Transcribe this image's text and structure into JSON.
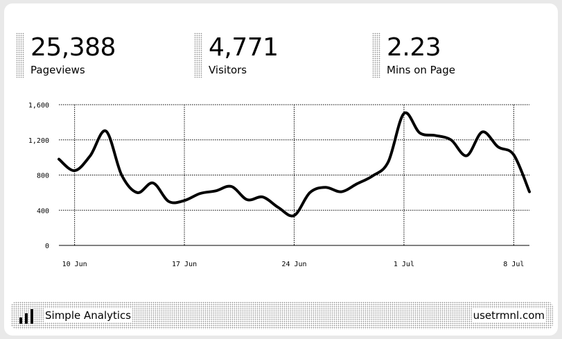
{
  "stats": [
    {
      "value": "25,388",
      "label": "Pageviews"
    },
    {
      "value": "4,771",
      "label": "Visitors"
    },
    {
      "value": "2.23",
      "label": "Mins on Page"
    }
  ],
  "footer": {
    "app_name": "Simple Analytics",
    "url": "usetrmnl.com"
  },
  "chart_data": {
    "type": "line",
    "title": "",
    "xlabel": "",
    "ylabel": "",
    "ylim": [
      0,
      1600
    ],
    "y_ticks": [
      "0",
      "400",
      "800",
      "1,200",
      "1,600"
    ],
    "x_ticks": [
      "10 Jun",
      "17 Jun",
      "24 Jun",
      "1 Jul",
      "8 Jul"
    ],
    "grid": true,
    "x": [
      "9 Jun",
      "10 Jun",
      "11 Jun",
      "12 Jun",
      "13 Jun",
      "14 Jun",
      "15 Jun",
      "16 Jun",
      "17 Jun",
      "18 Jun",
      "19 Jun",
      "20 Jun",
      "21 Jun",
      "22 Jun",
      "23 Jun",
      "24 Jun",
      "25 Jun",
      "26 Jun",
      "27 Jun",
      "28 Jun",
      "29 Jun",
      "30 Jun",
      "1 Jul",
      "2 Jul",
      "3 Jul",
      "4 Jul",
      "5 Jul",
      "6 Jul",
      "7 Jul",
      "8 Jul",
      "9 Jul"
    ],
    "series": [
      {
        "values": [
          980,
          850,
          1020,
          1300,
          800,
          600,
          710,
          500,
          510,
          590,
          620,
          670,
          520,
          550,
          430,
          340,
          600,
          660,
          610,
          700,
          790,
          950,
          1500,
          1280,
          1250,
          1200,
          1020,
          1290,
          1120,
          1030,
          610
        ]
      }
    ]
  }
}
